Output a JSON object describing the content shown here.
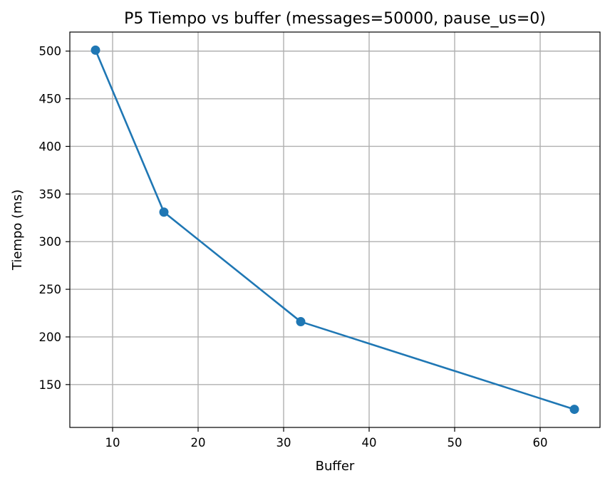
{
  "chart_data": {
    "type": "line",
    "title": "P5 Tiempo vs buffer (messages=50000, pause_us=0)",
    "xlabel": "Buffer",
    "ylabel": "Tiempo (ms)",
    "xlim": [
      5,
      67
    ],
    "ylim": [
      105,
      520
    ],
    "xticks": [
      10,
      20,
      30,
      40,
      50,
      60
    ],
    "yticks": [
      150,
      200,
      250,
      300,
      350,
      400,
      450,
      500
    ],
    "grid": true,
    "series": [
      {
        "name": "Tiempo",
        "color": "#1f77b4",
        "marker": "circle",
        "x": [
          8,
          16,
          32,
          64
        ],
        "y": [
          501,
          331,
          216,
          124
        ]
      }
    ]
  }
}
